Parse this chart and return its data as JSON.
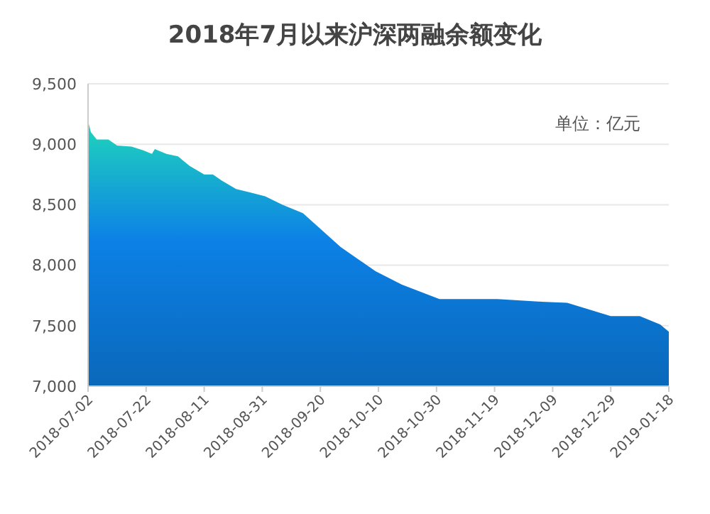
{
  "chart_data": {
    "type": "area",
    "title": "2018年7月以来沪深两融余额变化",
    "annotations": [
      "单位：亿元"
    ],
    "x": [
      "2018-07-02",
      "2018-07-03",
      "2018-07-05",
      "2018-07-09",
      "2018-07-12",
      "2018-07-17",
      "2018-07-21",
      "2018-07-24",
      "2018-07-25",
      "2018-07-29",
      "2018-08-02",
      "2018-08-06",
      "2018-08-11",
      "2018-08-14",
      "2018-08-17",
      "2018-08-22",
      "2018-08-27",
      "2018-09-01",
      "2018-09-07",
      "2018-09-14",
      "2018-09-27",
      "2018-10-09",
      "2018-10-18",
      "2018-10-31",
      "2018-11-20",
      "2018-12-04",
      "2018-12-14",
      "2018-12-29",
      "2019-01-08",
      "2019-01-15",
      "2019-01-18"
    ],
    "series": [
      {
        "color": "#0b78d6",
        "values": [
          9190,
          9100,
          9040,
          9040,
          8990,
          8980,
          8950,
          8920,
          8960,
          8920,
          8900,
          8820,
          8750,
          8750,
          8700,
          8630,
          8600,
          8570,
          8500,
          8430,
          8150,
          7950,
          7840,
          7720,
          7720,
          7700,
          7690,
          7580,
          7580,
          7510,
          7450
        ]
      }
    ],
    "xlim": [
      "2018-07-02",
      "2019-01-18"
    ],
    "xticks": [
      "2018-07-02",
      "2018-07-22",
      "2018-08-11",
      "2018-08-31",
      "2018-09-20",
      "2018-10-10",
      "2018-10-30",
      "2018-11-19",
      "2018-12-09",
      "2018-12-29",
      "2019-01-18"
    ],
    "ylim": [
      7000,
      9500
    ],
    "yticks": [
      {
        "value": 7000,
        "label": "7,000"
      },
      {
        "value": 7500,
        "label": "7,500"
      },
      {
        "value": 8000,
        "label": "8,000"
      },
      {
        "value": 8500,
        "label": "8,500"
      },
      {
        "value": 9000,
        "label": "9,000"
      },
      {
        "value": 9500,
        "label": "9,500"
      }
    ],
    "grid": "y"
  }
}
